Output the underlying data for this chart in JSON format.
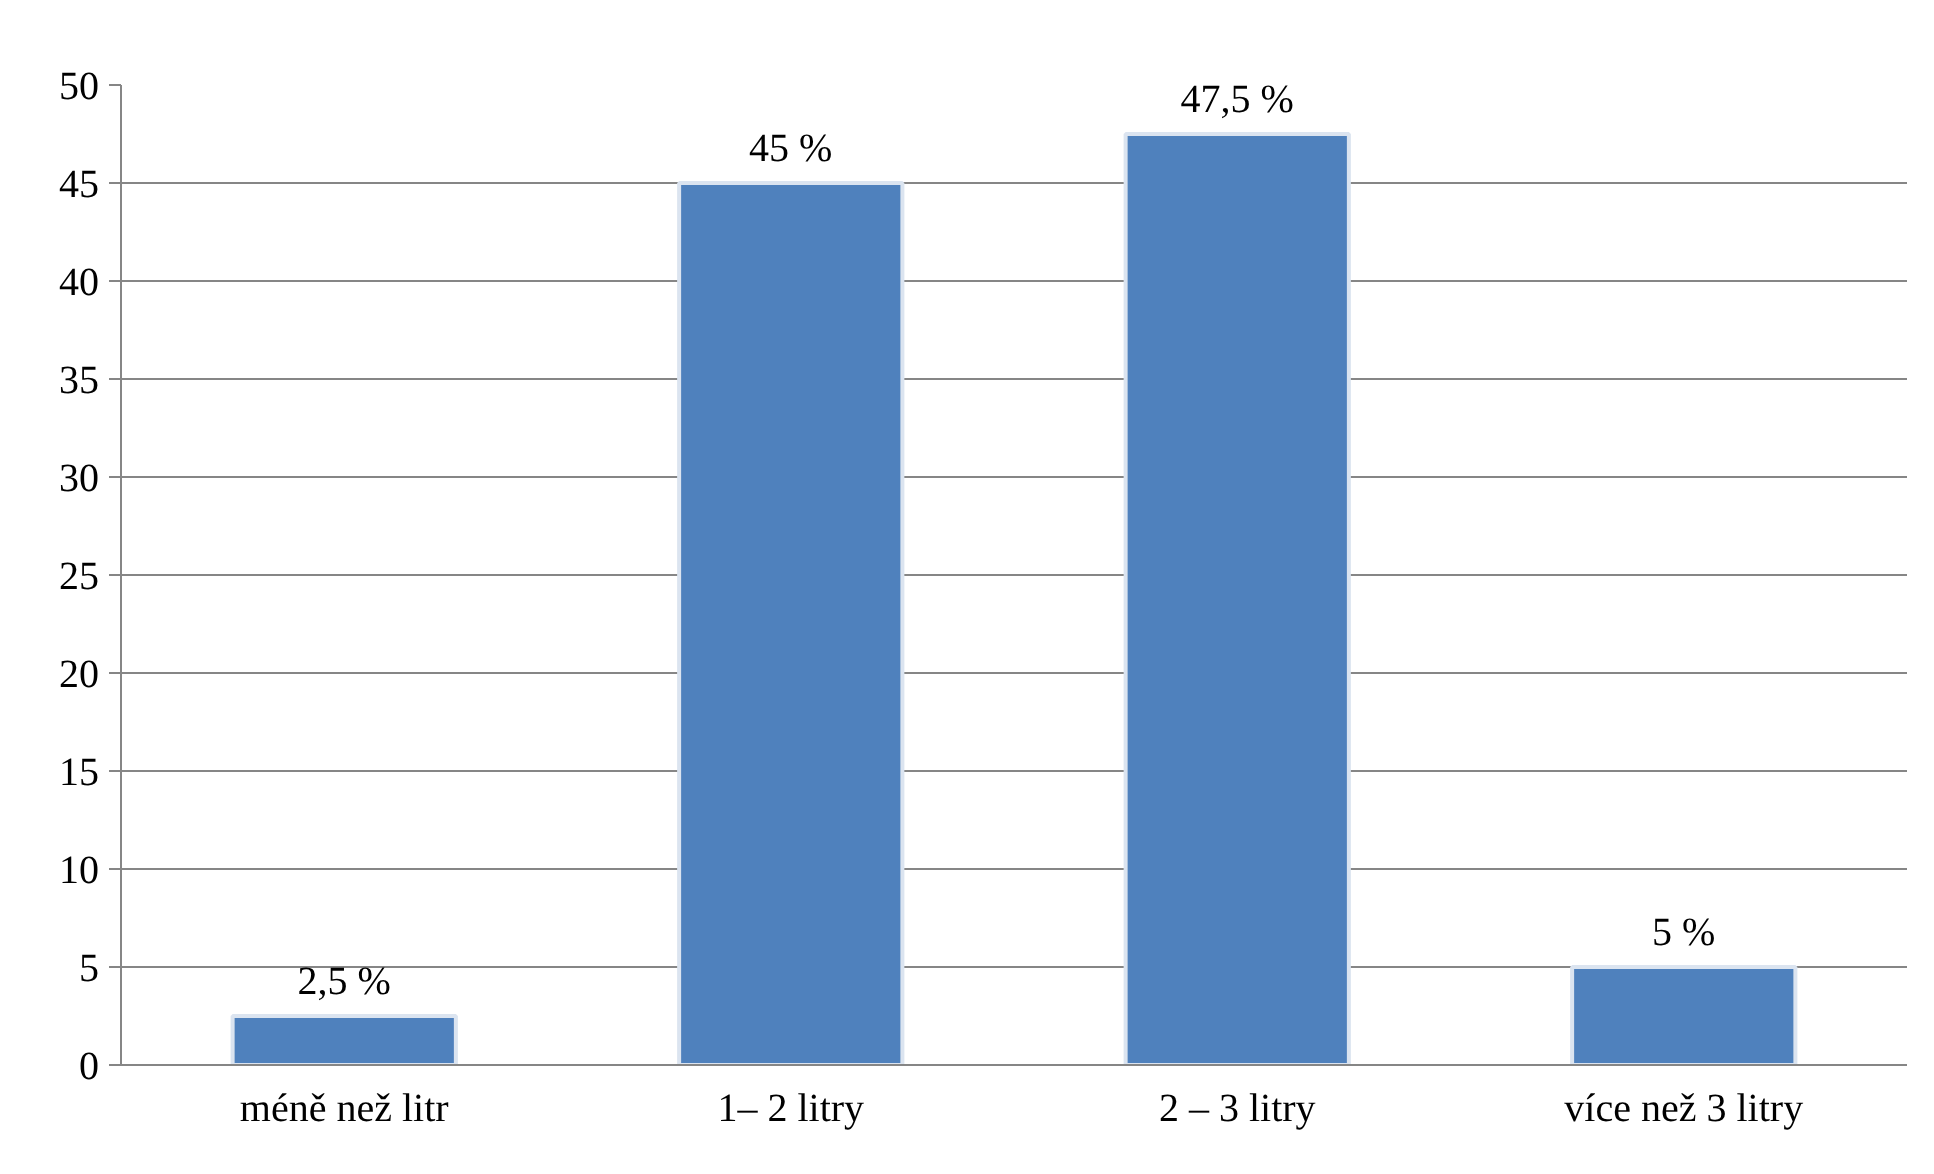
{
  "chart_data": {
    "type": "bar",
    "categories": [
      "méně než litr",
      "1– 2 litry",
      "2 – 3 litry",
      "více než 3 litry"
    ],
    "values": [
      2.5,
      45,
      47.5,
      5
    ],
    "value_labels": [
      "2,5 %",
      "45 %",
      "47,5 %",
      "5 %"
    ],
    "color": "#4f81bd",
    "ylim": [
      0,
      50
    ],
    "yticks": [
      0,
      5,
      10,
      15,
      20,
      25,
      30,
      35,
      40,
      45,
      50
    ],
    "grid": "y"
  }
}
